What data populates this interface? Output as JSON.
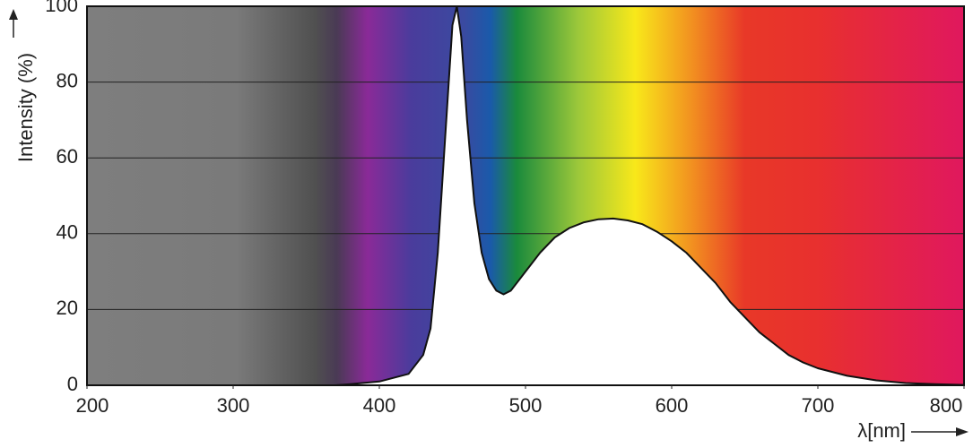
{
  "chart_data": {
    "type": "area",
    "x_label": "λ[nm]",
    "y_label": "Intensity (%)",
    "x": [
      370,
      380,
      400,
      420,
      430,
      435,
      440,
      445,
      450,
      453,
      456,
      460,
      465,
      470,
      475,
      480,
      485,
      490,
      500,
      510,
      520,
      530,
      540,
      550,
      560,
      570,
      580,
      590,
      600,
      610,
      620,
      630,
      640,
      650,
      660,
      670,
      680,
      690,
      700,
      720,
      740,
      760,
      780,
      800
    ],
    "values": [
      0,
      0.3,
      1,
      3,
      8,
      15,
      35,
      65,
      95,
      100,
      92,
      70,
      48,
      35,
      28,
      25,
      24,
      25,
      30,
      35,
      39,
      41.5,
      43,
      43.8,
      44,
      43.5,
      42.5,
      40.5,
      38,
      35,
      31,
      27,
      22,
      18,
      14,
      11,
      8,
      6,
      4.5,
      2.5,
      1.3,
      0.6,
      0.3,
      0.1
    ],
    "color": "#ffffff",
    "xlim": [
      200,
      800
    ],
    "xticks": [
      200,
      300,
      400,
      500,
      600,
      700,
      800
    ],
    "ylim": [
      0,
      100
    ],
    "yticks": [
      0,
      20,
      40,
      60,
      80,
      100
    ],
    "grid": true
  }
}
